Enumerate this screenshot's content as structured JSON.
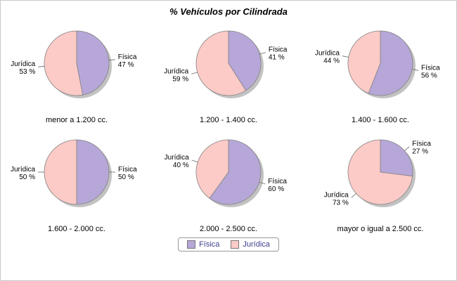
{
  "title": "% Vehículos por Cilindrada",
  "chart_data": {
    "type": "pie",
    "series_names": [
      "Física",
      "Jurídica"
    ],
    "colors": {
      "Física": "#b7a7d8",
      "Jurídica": "#fccbc7"
    },
    "shadow_color": "#c2c2c2",
    "outline_color": "#808080",
    "legend_text_color": "#3c3c8c",
    "legend": [
      "Física",
      "Jurídica"
    ],
    "charts": [
      {
        "label": "menor a 1.200 cc.",
        "values": {
          "Física": 47,
          "Jurídica": 53
        }
      },
      {
        "label": "1.200 - 1.400 cc.",
        "values": {
          "Física": 41,
          "Jurídica": 59
        }
      },
      {
        "label": "1.400 - 1.600 cc.",
        "values": {
          "Física": 56,
          "Jurídica": 44
        }
      },
      {
        "label": "1.600 - 2.000 cc.",
        "values": {
          "Física": 50,
          "Jurídica": 50
        }
      },
      {
        "label": "2.000 - 2.500 cc.",
        "values": {
          "Física": 60,
          "Jurídica": 40
        }
      },
      {
        "label": "mayor o igual a 2.500 cc.",
        "values": {
          "Física": 27,
          "Jurídica": 73
        }
      }
    ]
  }
}
